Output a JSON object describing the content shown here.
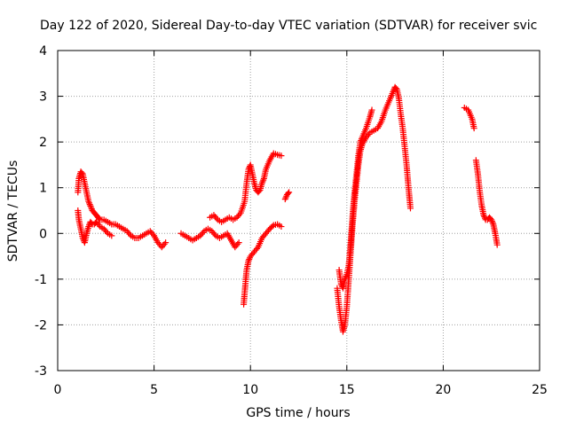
{
  "chart_data": {
    "type": "scatter",
    "title": "Day 122 of 2020, Sidereal Day-to-day VTEC variation (SDTVAR) for receiver svic",
    "xlabel": "GPS time / hours",
    "ylabel": "SDTVAR / TECUs",
    "xlim": [
      0,
      25
    ],
    "ylim": [
      -3,
      4
    ],
    "x_ticks": [
      0,
      5,
      10,
      15,
      20,
      25
    ],
    "y_ticks": [
      -3,
      -2,
      -1,
      0,
      1,
      2,
      3,
      4
    ],
    "grid": true,
    "marker": "+",
    "series": [
      {
        "name": "SDTVAR",
        "color": "#ff0000",
        "segments": [
          [
            [
              1.05,
              0.9
            ],
            [
              1.1,
              1.2
            ],
            [
              1.2,
              1.35
            ],
            [
              1.3,
              1.3
            ],
            [
              1.4,
              1.1
            ],
            [
              1.5,
              0.9
            ],
            [
              1.6,
              0.7
            ],
            [
              1.7,
              0.6
            ],
            [
              1.8,
              0.5
            ],
            [
              1.9,
              0.45
            ],
            [
              2.0,
              0.4
            ],
            [
              2.1,
              0.35
            ],
            [
              2.2,
              0.3
            ],
            [
              2.4,
              0.3
            ],
            [
              2.6,
              0.25
            ],
            [
              2.8,
              0.2
            ],
            [
              3.0,
              0.2
            ],
            [
              3.2,
              0.15
            ],
            [
              3.4,
              0.1
            ],
            [
              3.6,
              0.05
            ],
            [
              3.8,
              -0.05
            ],
            [
              4.0,
              -0.1
            ],
            [
              4.2,
              -0.1
            ],
            [
              4.4,
              -0.05
            ],
            [
              4.6,
              0.0
            ],
            [
              4.8,
              0.05
            ],
            [
              5.0,
              -0.05
            ],
            [
              5.2,
              -0.2
            ],
            [
              5.4,
              -0.3
            ],
            [
              5.6,
              -0.2
            ]
          ],
          [
            [
              1.05,
              0.5
            ],
            [
              1.1,
              0.3
            ],
            [
              1.2,
              0.1
            ],
            [
              1.3,
              -0.1
            ],
            [
              1.4,
              -0.2
            ],
            [
              1.5,
              0.0
            ],
            [
              1.6,
              0.15
            ],
            [
              1.7,
              0.25
            ],
            [
              1.8,
              0.2
            ],
            [
              1.9,
              0.2
            ],
            [
              2.0,
              0.25
            ],
            [
              2.2,
              0.15
            ],
            [
              2.4,
              0.1
            ],
            [
              2.6,
              0.0
            ],
            [
              2.8,
              -0.05
            ]
          ],
          [
            [
              6.4,
              0.0
            ],
            [
              6.6,
              -0.05
            ],
            [
              6.8,
              -0.1
            ],
            [
              7.0,
              -0.15
            ],
            [
              7.2,
              -0.1
            ],
            [
              7.4,
              -0.05
            ],
            [
              7.6,
              0.05
            ],
            [
              7.8,
              0.1
            ],
            [
              8.0,
              0.05
            ],
            [
              8.2,
              -0.05
            ],
            [
              8.4,
              -0.1
            ],
            [
              8.6,
              -0.05
            ],
            [
              8.8,
              0.0
            ],
            [
              9.0,
              -0.15
            ],
            [
              9.2,
              -0.3
            ],
            [
              9.4,
              -0.2
            ]
          ],
          [
            [
              7.9,
              0.35
            ],
            [
              8.1,
              0.4
            ],
            [
              8.3,
              0.3
            ],
            [
              8.5,
              0.25
            ],
            [
              8.7,
              0.3
            ],
            [
              8.9,
              0.35
            ],
            [
              9.1,
              0.3
            ],
            [
              9.3,
              0.35
            ],
            [
              9.5,
              0.45
            ],
            [
              9.7,
              0.7
            ],
            [
              9.8,
              1.1
            ],
            [
              9.9,
              1.4
            ],
            [
              10.0,
              1.5
            ],
            [
              10.1,
              1.3
            ],
            [
              10.2,
              1.1
            ],
            [
              10.3,
              0.95
            ],
            [
              10.4,
              0.9
            ],
            [
              10.5,
              0.95
            ],
            [
              10.6,
              1.1
            ],
            [
              10.7,
              1.2
            ],
            [
              10.8,
              1.4
            ],
            [
              11.0,
              1.6
            ],
            [
              11.2,
              1.75
            ],
            [
              11.4,
              1.72
            ],
            [
              11.6,
              1.7
            ]
          ],
          [
            [
              9.65,
              -1.55
            ],
            [
              9.7,
              -1.3
            ],
            [
              9.8,
              -0.8
            ],
            [
              9.9,
              -0.6
            ],
            [
              10.0,
              -0.5
            ],
            [
              10.2,
              -0.4
            ],
            [
              10.4,
              -0.3
            ],
            [
              10.6,
              -0.1
            ],
            [
              10.8,
              0.0
            ],
            [
              11.0,
              0.1
            ],
            [
              11.2,
              0.18
            ],
            [
              11.4,
              0.2
            ],
            [
              11.6,
              0.15
            ]
          ],
          [
            [
              11.8,
              0.75
            ],
            [
              11.9,
              0.85
            ],
            [
              12.0,
              0.9
            ]
          ],
          [
            [
              14.5,
              -1.2
            ],
            [
              14.6,
              -1.6
            ],
            [
              14.7,
              -1.9
            ],
            [
              14.8,
              -2.15
            ],
            [
              14.9,
              -2.0
            ],
            [
              15.0,
              -1.6
            ],
            [
              15.1,
              -1.0
            ],
            [
              15.2,
              -0.4
            ],
            [
              15.3,
              0.2
            ],
            [
              15.4,
              0.7
            ],
            [
              15.5,
              1.1
            ],
            [
              15.6,
              1.5
            ],
            [
              15.7,
              1.8
            ],
            [
              15.8,
              1.95
            ],
            [
              16.0,
              2.1
            ],
            [
              16.2,
              2.2
            ],
            [
              16.4,
              2.25
            ],
            [
              16.6,
              2.3
            ],
            [
              16.8,
              2.45
            ],
            [
              17.0,
              2.7
            ],
            [
              17.2,
              2.9
            ],
            [
              17.4,
              3.1
            ],
            [
              17.5,
              3.2
            ],
            [
              17.6,
              3.15
            ],
            [
              17.7,
              2.95
            ],
            [
              17.8,
              2.6
            ],
            [
              17.9,
              2.3
            ],
            [
              18.0,
              1.9
            ],
            [
              18.1,
              1.5
            ],
            [
              18.2,
              1.0
            ],
            [
              18.3,
              0.55
            ]
          ],
          [
            [
              14.6,
              -0.8
            ],
            [
              14.7,
              -1.1
            ],
            [
              14.8,
              -1.2
            ],
            [
              14.9,
              -1.0
            ],
            [
              15.0,
              -0.9
            ],
            [
              15.1,
              -0.7
            ],
            [
              15.2,
              -0.2
            ],
            [
              15.3,
              0.4
            ],
            [
              15.4,
              0.9
            ],
            [
              15.5,
              1.3
            ],
            [
              15.6,
              1.7
            ],
            [
              15.7,
              2.0
            ],
            [
              15.8,
              2.1
            ],
            [
              16.0,
              2.3
            ],
            [
              16.2,
              2.55
            ],
            [
              16.3,
              2.7
            ]
          ],
          [
            [
              21.1,
              2.75
            ],
            [
              21.3,
              2.7
            ],
            [
              21.5,
              2.5
            ],
            [
              21.6,
              2.3
            ]
          ],
          [
            [
              21.7,
              1.6
            ],
            [
              21.8,
              1.3
            ],
            [
              21.9,
              0.9
            ],
            [
              22.0,
              0.6
            ],
            [
              22.1,
              0.4
            ],
            [
              22.2,
              0.3
            ],
            [
              22.3,
              0.3
            ],
            [
              22.4,
              0.35
            ],
            [
              22.5,
              0.3
            ],
            [
              22.6,
              0.2
            ],
            [
              22.7,
              0.0
            ],
            [
              22.8,
              -0.25
            ]
          ]
        ]
      }
    ]
  }
}
